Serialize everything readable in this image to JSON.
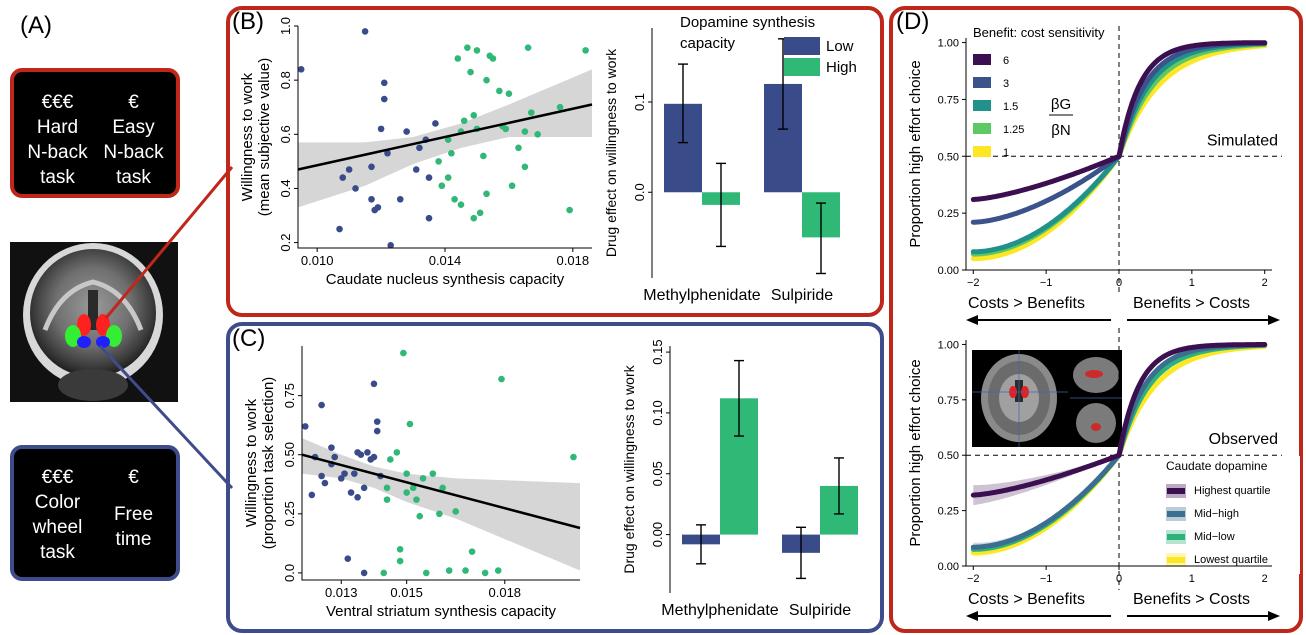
{
  "panel_labels": {
    "a": "(A)",
    "b": "(B)",
    "c": "(C)",
    "d": "(D)"
  },
  "task_boxes": [
    {
      "cols": [
        {
          "cost": "€€€",
          "lines": [
            "Hard",
            "N-back",
            "task"
          ]
        },
        {
          "cost": "€",
          "lines": [
            "Easy",
            "N-back",
            "task"
          ]
        }
      ]
    },
    {
      "cols": [
        {
          "cost": "€€€",
          "lines": [
            "Color",
            "wheel",
            "task"
          ]
        },
        {
          "cost": "€",
          "lines": [
            "Free",
            "time"
          ]
        }
      ]
    }
  ],
  "colors": {
    "red": "#c0271b",
    "blue": "#3f4c8c",
    "navy": "#3a4b8a",
    "green": "#2fb876",
    "band": "#d4d4d4",
    "roi_red": "#ff2020",
    "roi_green": "#33ee33",
    "roi_blue": "#2020ff"
  },
  "chart_data": [
    {
      "id": "B_scatter",
      "type": "scatter",
      "ylabel": [
        "Willingness to work",
        "(mean subjective value)"
      ],
      "xlabel": "Caudate nucleus synthesis capacity",
      "xlim": [
        0.0094,
        0.0186
      ],
      "ylim": [
        0.18,
        1.0
      ],
      "xticks": [
        {
          "v": 0.01,
          "t": "0.010"
        },
        {
          "v": 0.014,
          "t": "0.014"
        },
        {
          "v": 0.018,
          "t": "0.018"
        }
      ],
      "yticks": [
        {
          "v": 0.2,
          "t": "0.2"
        },
        {
          "v": 0.4,
          "t": "0.4"
        },
        {
          "v": 0.6,
          "t": "0.6"
        },
        {
          "v": 0.8,
          "t": "0.8"
        },
        {
          "v": 1.0,
          "t": "1.0"
        }
      ],
      "fit": [
        [
          0.0094,
          0.47
        ],
        [
          0.0186,
          0.71
        ]
      ],
      "band_upper": [
        [
          0.0094,
          0.57
        ],
        [
          0.0115,
          0.57
        ],
        [
          0.013,
          0.59
        ],
        [
          0.0145,
          0.64
        ],
        [
          0.016,
          0.71
        ],
        [
          0.0186,
          0.84
        ]
      ],
      "band_lower": [
        [
          0.0094,
          0.33
        ],
        [
          0.0115,
          0.41
        ],
        [
          0.013,
          0.49
        ],
        [
          0.0145,
          0.55
        ],
        [
          0.016,
          0.59
        ],
        [
          0.0186,
          0.59
        ]
      ],
      "series": [
        {
          "color_key": "navy",
          "points": [
            [
              0.0095,
              0.84
            ],
            [
              0.0107,
              0.25
            ],
            [
              0.0108,
              0.44
            ],
            [
              0.011,
              0.47
            ],
            [
              0.0112,
              0.4
            ],
            [
              0.0115,
              0.98
            ],
            [
              0.0117,
              0.36
            ],
            [
              0.0117,
              0.48
            ],
            [
              0.0118,
              0.32
            ],
            [
              0.0119,
              0.33
            ],
            [
              0.012,
              0.62
            ],
            [
              0.0121,
              0.79
            ],
            [
              0.0121,
              0.73
            ],
            [
              0.0122,
              0.53
            ],
            [
              0.0123,
              0.19
            ],
            [
              0.0126,
              0.36
            ],
            [
              0.0128,
              0.61
            ],
            [
              0.0131,
              0.47
            ],
            [
              0.0132,
              0.55
            ],
            [
              0.0134,
              0.58
            ],
            [
              0.0135,
              0.29
            ],
            [
              0.0135,
              0.44
            ],
            [
              0.0137,
              0.64
            ]
          ]
        },
        {
          "color_key": "green",
          "points": [
            [
              0.0138,
              0.5
            ],
            [
              0.0139,
              0.41
            ],
            [
              0.0141,
              0.58
            ],
            [
              0.0141,
              0.44
            ],
            [
              0.0142,
              0.53
            ],
            [
              0.0143,
              0.36
            ],
            [
              0.0144,
              0.88
            ],
            [
              0.0145,
              0.34
            ],
            [
              0.0145,
              0.61
            ],
            [
              0.0146,
              0.65
            ],
            [
              0.0147,
              0.92
            ],
            [
              0.0148,
              0.83
            ],
            [
              0.0149,
              0.67
            ],
            [
              0.0149,
              0.29
            ],
            [
              0.015,
              0.91
            ],
            [
              0.015,
              0.62
            ],
            [
              0.0151,
              0.31
            ],
            [
              0.0152,
              0.52
            ],
            [
              0.0153,
              0.38
            ],
            [
              0.0153,
              0.8
            ],
            [
              0.0154,
              0.89
            ],
            [
              0.0155,
              0.88
            ],
            [
              0.0157,
              0.76
            ],
            [
              0.0158,
              0.63
            ],
            [
              0.0159,
              0.62
            ],
            [
              0.016,
              0.75
            ],
            [
              0.0161,
              0.41
            ],
            [
              0.0163,
              0.55
            ],
            [
              0.0165,
              0.61
            ],
            [
              0.0165,
              0.48
            ],
            [
              0.0166,
              0.92
            ],
            [
              0.0167,
              0.68
            ],
            [
              0.0169,
              0.6
            ],
            [
              0.0176,
              0.7
            ],
            [
              0.0179,
              0.32
            ],
            [
              0.0184,
              0.91
            ]
          ]
        }
      ]
    },
    {
      "id": "B_bar",
      "type": "bar",
      "title": [
        "Dopamine synthesis",
        "capacity"
      ],
      "ylabel": "Drug effect on willingness to work",
      "categories": [
        "Methylphenidate",
        "Sulpiride"
      ],
      "ylim": [
        -0.095,
        0.182
      ],
      "yticks": [
        {
          "v": 0.0,
          "t": "0.0"
        },
        {
          "v": 0.1,
          "t": "0.1"
        }
      ],
      "legend": [
        {
          "name": "Low",
          "color_key": "navy"
        },
        {
          "name": "High",
          "color_key": "green"
        }
      ],
      "series": [
        {
          "name": "Low",
          "color_key": "navy",
          "values": [
            0.098,
            0.12
          ],
          "err": [
            [
              0.055,
              0.142
            ],
            [
              0.07,
              0.17
            ]
          ]
        },
        {
          "name": "High",
          "color_key": "green",
          "values": [
            -0.014,
            -0.05
          ],
          "err": [
            [
              -0.06,
              0.032
            ],
            [
              -0.09,
              -0.012
            ]
          ]
        }
      ]
    },
    {
      "id": "C_scatter",
      "type": "scatter",
      "ylabel": [
        "Willingness to work",
        "(proportion task selection)"
      ],
      "xlabel": "Ventral striatum synthesis capacity",
      "xlim": [
        0.0118,
        0.0203
      ],
      "ylim": [
        -0.03,
        0.96
      ],
      "xticks": [
        {
          "v": 0.013,
          "t": "0.013"
        },
        {
          "v": 0.015,
          "t": "0.015"
        },
        {
          "v": 0.018,
          "t": "0.018"
        }
      ],
      "yticks": [
        {
          "v": 0.0,
          "t": "0.0"
        },
        {
          "v": 0.25,
          "t": "0.25"
        },
        {
          "v": 0.5,
          "t": "0.50"
        },
        {
          "v": 0.75,
          "t": "0.75"
        }
      ],
      "fit": [
        [
          0.0118,
          0.5
        ],
        [
          0.0203,
          0.19
        ]
      ],
      "band_upper": [
        [
          0.0118,
          0.57
        ],
        [
          0.013,
          0.5
        ],
        [
          0.014,
          0.45
        ],
        [
          0.015,
          0.42
        ],
        [
          0.0165,
          0.4
        ],
        [
          0.0203,
          0.38
        ]
      ],
      "band_lower": [
        [
          0.0118,
          0.42
        ],
        [
          0.013,
          0.4
        ],
        [
          0.014,
          0.36
        ],
        [
          0.015,
          0.3
        ],
        [
          0.0165,
          0.23
        ],
        [
          0.0203,
          0.01
        ]
      ],
      "series": [
        {
          "color_key": "navy",
          "points": [
            [
              0.0119,
              0.62
            ],
            [
              0.0121,
              0.33
            ],
            [
              0.0122,
              0.49
            ],
            [
              0.0124,
              0.71
            ],
            [
              0.0124,
              0.41
            ],
            [
              0.0125,
              0.38
            ],
            [
              0.0127,
              0.53
            ],
            [
              0.0127,
              0.46
            ],
            [
              0.0128,
              0.49
            ],
            [
              0.013,
              0.4
            ],
            [
              0.0131,
              0.42
            ],
            [
              0.0132,
              0.06
            ],
            [
              0.0133,
              0.34
            ],
            [
              0.0134,
              0.42
            ],
            [
              0.0135,
              0.51
            ],
            [
              0.0135,
              0.32
            ],
            [
              0.0136,
              0.5
            ],
            [
              0.0137,
              0.36
            ],
            [
              0.0137,
              0.0
            ],
            [
              0.0138,
              0.51
            ],
            [
              0.0139,
              0.48
            ],
            [
              0.014,
              0.49
            ],
            [
              0.014,
              0.8
            ],
            [
              0.0141,
              0.64
            ],
            [
              0.0141,
              0.6
            ],
            [
              0.0142,
              0.41
            ]
          ]
        },
        {
          "color_key": "green",
          "points": [
            [
              0.0143,
              0.0
            ],
            [
              0.0144,
              0.36
            ],
            [
              0.0144,
              0.31
            ],
            [
              0.0145,
              0.48
            ],
            [
              0.0147,
              0.51
            ],
            [
              0.0148,
              0.1
            ],
            [
              0.0148,
              0.05
            ],
            [
              0.0149,
              0.93
            ],
            [
              0.015,
              0.42
            ],
            [
              0.015,
              0.34
            ],
            [
              0.0151,
              0.63
            ],
            [
              0.0152,
              0.36
            ],
            [
              0.0153,
              0.31
            ],
            [
              0.0154,
              0.24
            ],
            [
              0.0155,
              0.4
            ],
            [
              0.0156,
              0.0
            ],
            [
              0.0158,
              0.42
            ],
            [
              0.016,
              0.25
            ],
            [
              0.0161,
              0.36
            ],
            [
              0.0163,
              0.01
            ],
            [
              0.0165,
              0.26
            ],
            [
              0.0168,
              0.01
            ],
            [
              0.017,
              0.09
            ],
            [
              0.0174,
              0.0
            ],
            [
              0.0178,
              0.01
            ],
            [
              0.0179,
              0.82
            ],
            [
              0.0201,
              0.49
            ]
          ]
        }
      ]
    },
    {
      "id": "C_bar",
      "type": "bar",
      "ylabel": "Drug effect on willingness to work",
      "categories": [
        "Methylphenidate",
        "Sulpiride"
      ],
      "ylim": [
        -0.048,
        0.155
      ],
      "yticks": [
        {
          "v": 0.0,
          "t": "0.00"
        },
        {
          "v": 0.05,
          "t": "0.05"
        },
        {
          "v": 0.1,
          "t": "0.10"
        },
        {
          "v": 0.15,
          "t": "0.15"
        }
      ],
      "series": [
        {
          "name": "Low",
          "color_key": "navy",
          "values": [
            -0.008,
            -0.015
          ],
          "err": [
            [
              -0.024,
              0.008
            ],
            [
              -0.036,
              0.006
            ]
          ]
        },
        {
          "name": "High",
          "color_key": "green",
          "values": [
            0.112,
            0.04
          ],
          "err": [
            [
              0.081,
              0.143
            ],
            [
              0.017,
              0.063
            ]
          ]
        }
      ]
    },
    {
      "id": "D_sim",
      "type": "line",
      "ylabel": "Proportion high effort choice",
      "xlim": [
        -2.1,
        2.1
      ],
      "ylim": [
        0.0,
        1.02
      ],
      "xticks": [
        {
          "v": -2,
          "t": "−2"
        },
        {
          "v": -1,
          "t": "−1"
        },
        {
          "v": 0,
          "t": "0"
        },
        {
          "v": 1,
          "t": "1"
        },
        {
          "v": 2,
          "t": "2"
        }
      ],
      "yticks": [
        {
          "v": 0.0,
          "t": "0.00"
        },
        {
          "v": 0.25,
          "t": "0.25"
        },
        {
          "v": 0.5,
          "t": "0.50"
        },
        {
          "v": 0.75,
          "t": "0.75"
        },
        {
          "v": 1.0,
          "t": "1.00"
        }
      ],
      "legend_title": "Benefit: cost sensitivity",
      "ratio_num": "βG",
      "ratio_den": "βN",
      "tag": "Simulated",
      "xlabel_left": "Costs > Benefits",
      "xlabel_right": "Benefits > Costs",
      "series": [
        {
          "name": "6",
          "color": "#3b0f50",
          "left_end": 0.31,
          "up_rate": 3.5
        },
        {
          "name": "3",
          "color": "#3b528b",
          "left_end": 0.21,
          "up_rate": 2.8
        },
        {
          "name": "1.5",
          "color": "#21918c",
          "left_end": 0.08,
          "up_rate": 2.4
        },
        {
          "name": "1.25",
          "color": "#5ec962",
          "left_end": 0.07,
          "up_rate": 2.1
        },
        {
          "name": "1",
          "color": "#fde725",
          "left_end": 0.05,
          "up_rate": 1.8
        }
      ]
    },
    {
      "id": "D_obs",
      "type": "line",
      "ylabel": "Proportion high effort choice",
      "xlim": [
        -2.1,
        2.1
      ],
      "ylim": [
        0.0,
        1.02
      ],
      "xticks": [
        {
          "v": -2,
          "t": "−2"
        },
        {
          "v": -1,
          "t": "−1"
        },
        {
          "v": 0,
          "t": "0"
        },
        {
          "v": 1,
          "t": "1"
        },
        {
          "v": 2,
          "t": "2"
        }
      ],
      "yticks": [
        {
          "v": 0.0,
          "t": "0.00"
        },
        {
          "v": 0.25,
          "t": "0.25"
        },
        {
          "v": 0.5,
          "t": "0.50"
        },
        {
          "v": 0.75,
          "t": "0.75"
        },
        {
          "v": 1.0,
          "t": "1.00"
        }
      ],
      "legend_title": "Caudate dopamine",
      "tag": "Observed",
      "xlabel_left": "Costs > Benefits",
      "xlabel_right": "Benefits > Costs",
      "series": [
        {
          "name": "Highest quartile",
          "color": "#3b0f50",
          "left_end": 0.32,
          "up_rate": 3.6
        },
        {
          "name": "Mid−high",
          "color": "#3b6e8f",
          "left_end": 0.085,
          "up_rate": 2.8
        },
        {
          "name": "Mid−low",
          "color": "#2eb27c",
          "left_end": 0.075,
          "up_rate": 2.4
        },
        {
          "name": "Lowest quartile",
          "color": "#fde725",
          "left_end": 0.06,
          "up_rate": 2.0
        }
      ]
    }
  ]
}
